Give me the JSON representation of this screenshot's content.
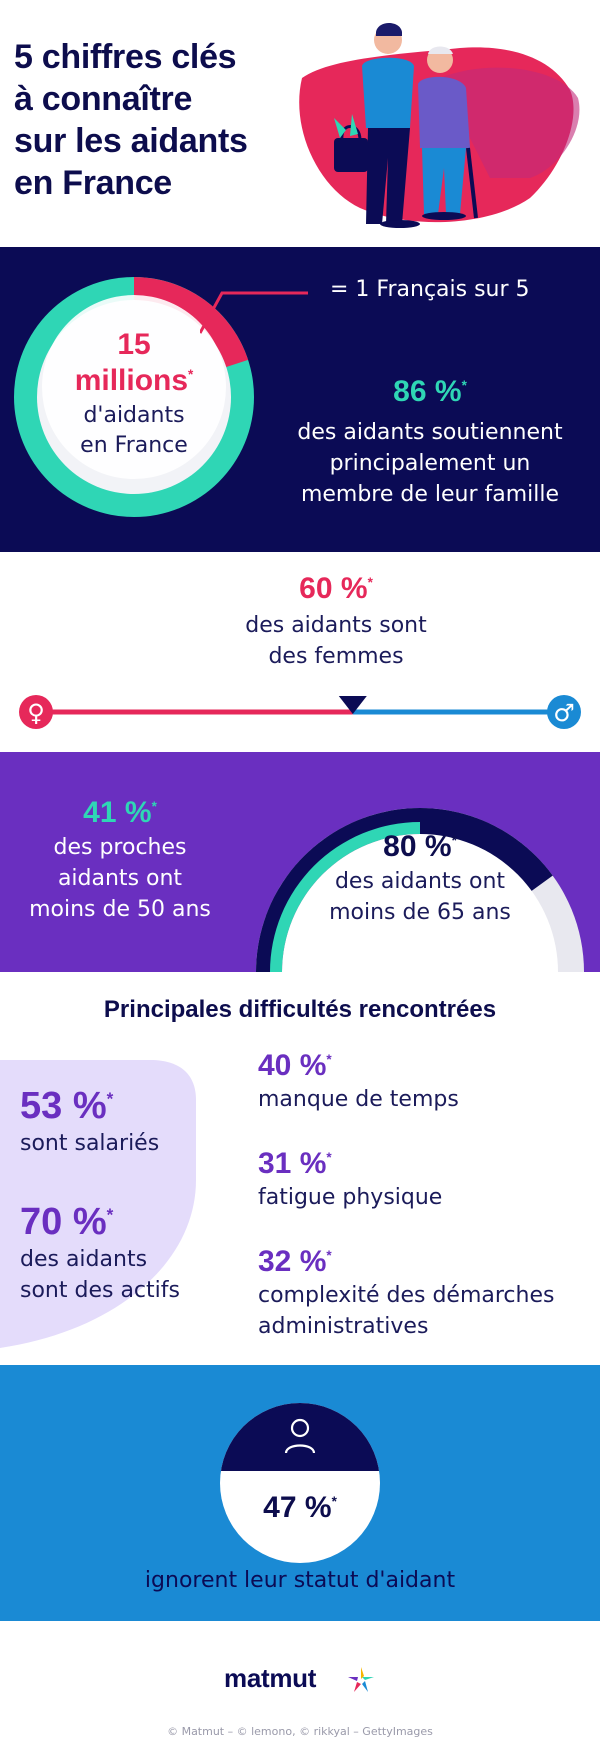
{
  "header": {
    "title_lines": [
      "5 chiffres clés",
      "à connaître",
      "sur les aidants",
      "en France"
    ]
  },
  "aidants": {
    "value": "15",
    "unit": "millions",
    "asterisk": "*",
    "desc_line1": "d'aidants",
    "desc_line2": "en France",
    "ratio_text": "= 1 Français sur 5",
    "share_fraction": 0.2
  },
  "famille": {
    "value": "86 %",
    "asterisk": "*",
    "desc_lines": [
      "des aidants soutiennent",
      "principalement un",
      "membre de leur famille"
    ]
  },
  "femmes": {
    "value": "60 %",
    "asterisk": "*",
    "desc_lines": [
      "des aidants sont",
      "des femmes"
    ],
    "female_symbol": "♀",
    "male_symbol": "♂",
    "female_fraction": 0.6
  },
  "age50": {
    "value": "41 %",
    "asterisk": "*",
    "desc_lines": [
      "des proches",
      "aidants ont",
      "moins de 50 ans"
    ]
  },
  "age65": {
    "value": "80 %",
    "asterisk": "*",
    "desc_lines": [
      "des aidants ont",
      "moins de 65 ans"
    ],
    "fraction": 0.8
  },
  "difficultes": {
    "title": "Principales difficultés rencontrées",
    "employment": [
      {
        "value": "53 %",
        "asterisk": "*",
        "desc_lines": [
          "sont salariés"
        ]
      },
      {
        "value": "70 %",
        "asterisk": "*",
        "desc_lines": [
          "des aidants",
          "sont des actifs"
        ]
      }
    ],
    "items": [
      {
        "value": "40 %",
        "asterisk": "*",
        "desc_lines": [
          "manque de temps"
        ]
      },
      {
        "value": "31 %",
        "asterisk": "*",
        "desc_lines": [
          "fatigue physique"
        ]
      },
      {
        "value": "32 %",
        "asterisk": "*",
        "desc_lines": [
          "complexité des démarches",
          "administratives"
        ]
      }
    ]
  },
  "statut": {
    "value": "47 %",
    "asterisk": "*",
    "desc": "ignorent leur statut d'aidant",
    "icon": "user-icon"
  },
  "footer": {
    "logo": "matmut",
    "credit": "© Matmut – © lemono, © rikkyal – GettyImages"
  },
  "colors": {
    "navy": "#0b0b55",
    "mint": "#2fd6b5",
    "pink": "#e6285a",
    "purple": "#6a2fc0",
    "blue": "#1a8ad4",
    "lavender": "#e4dcfb"
  }
}
